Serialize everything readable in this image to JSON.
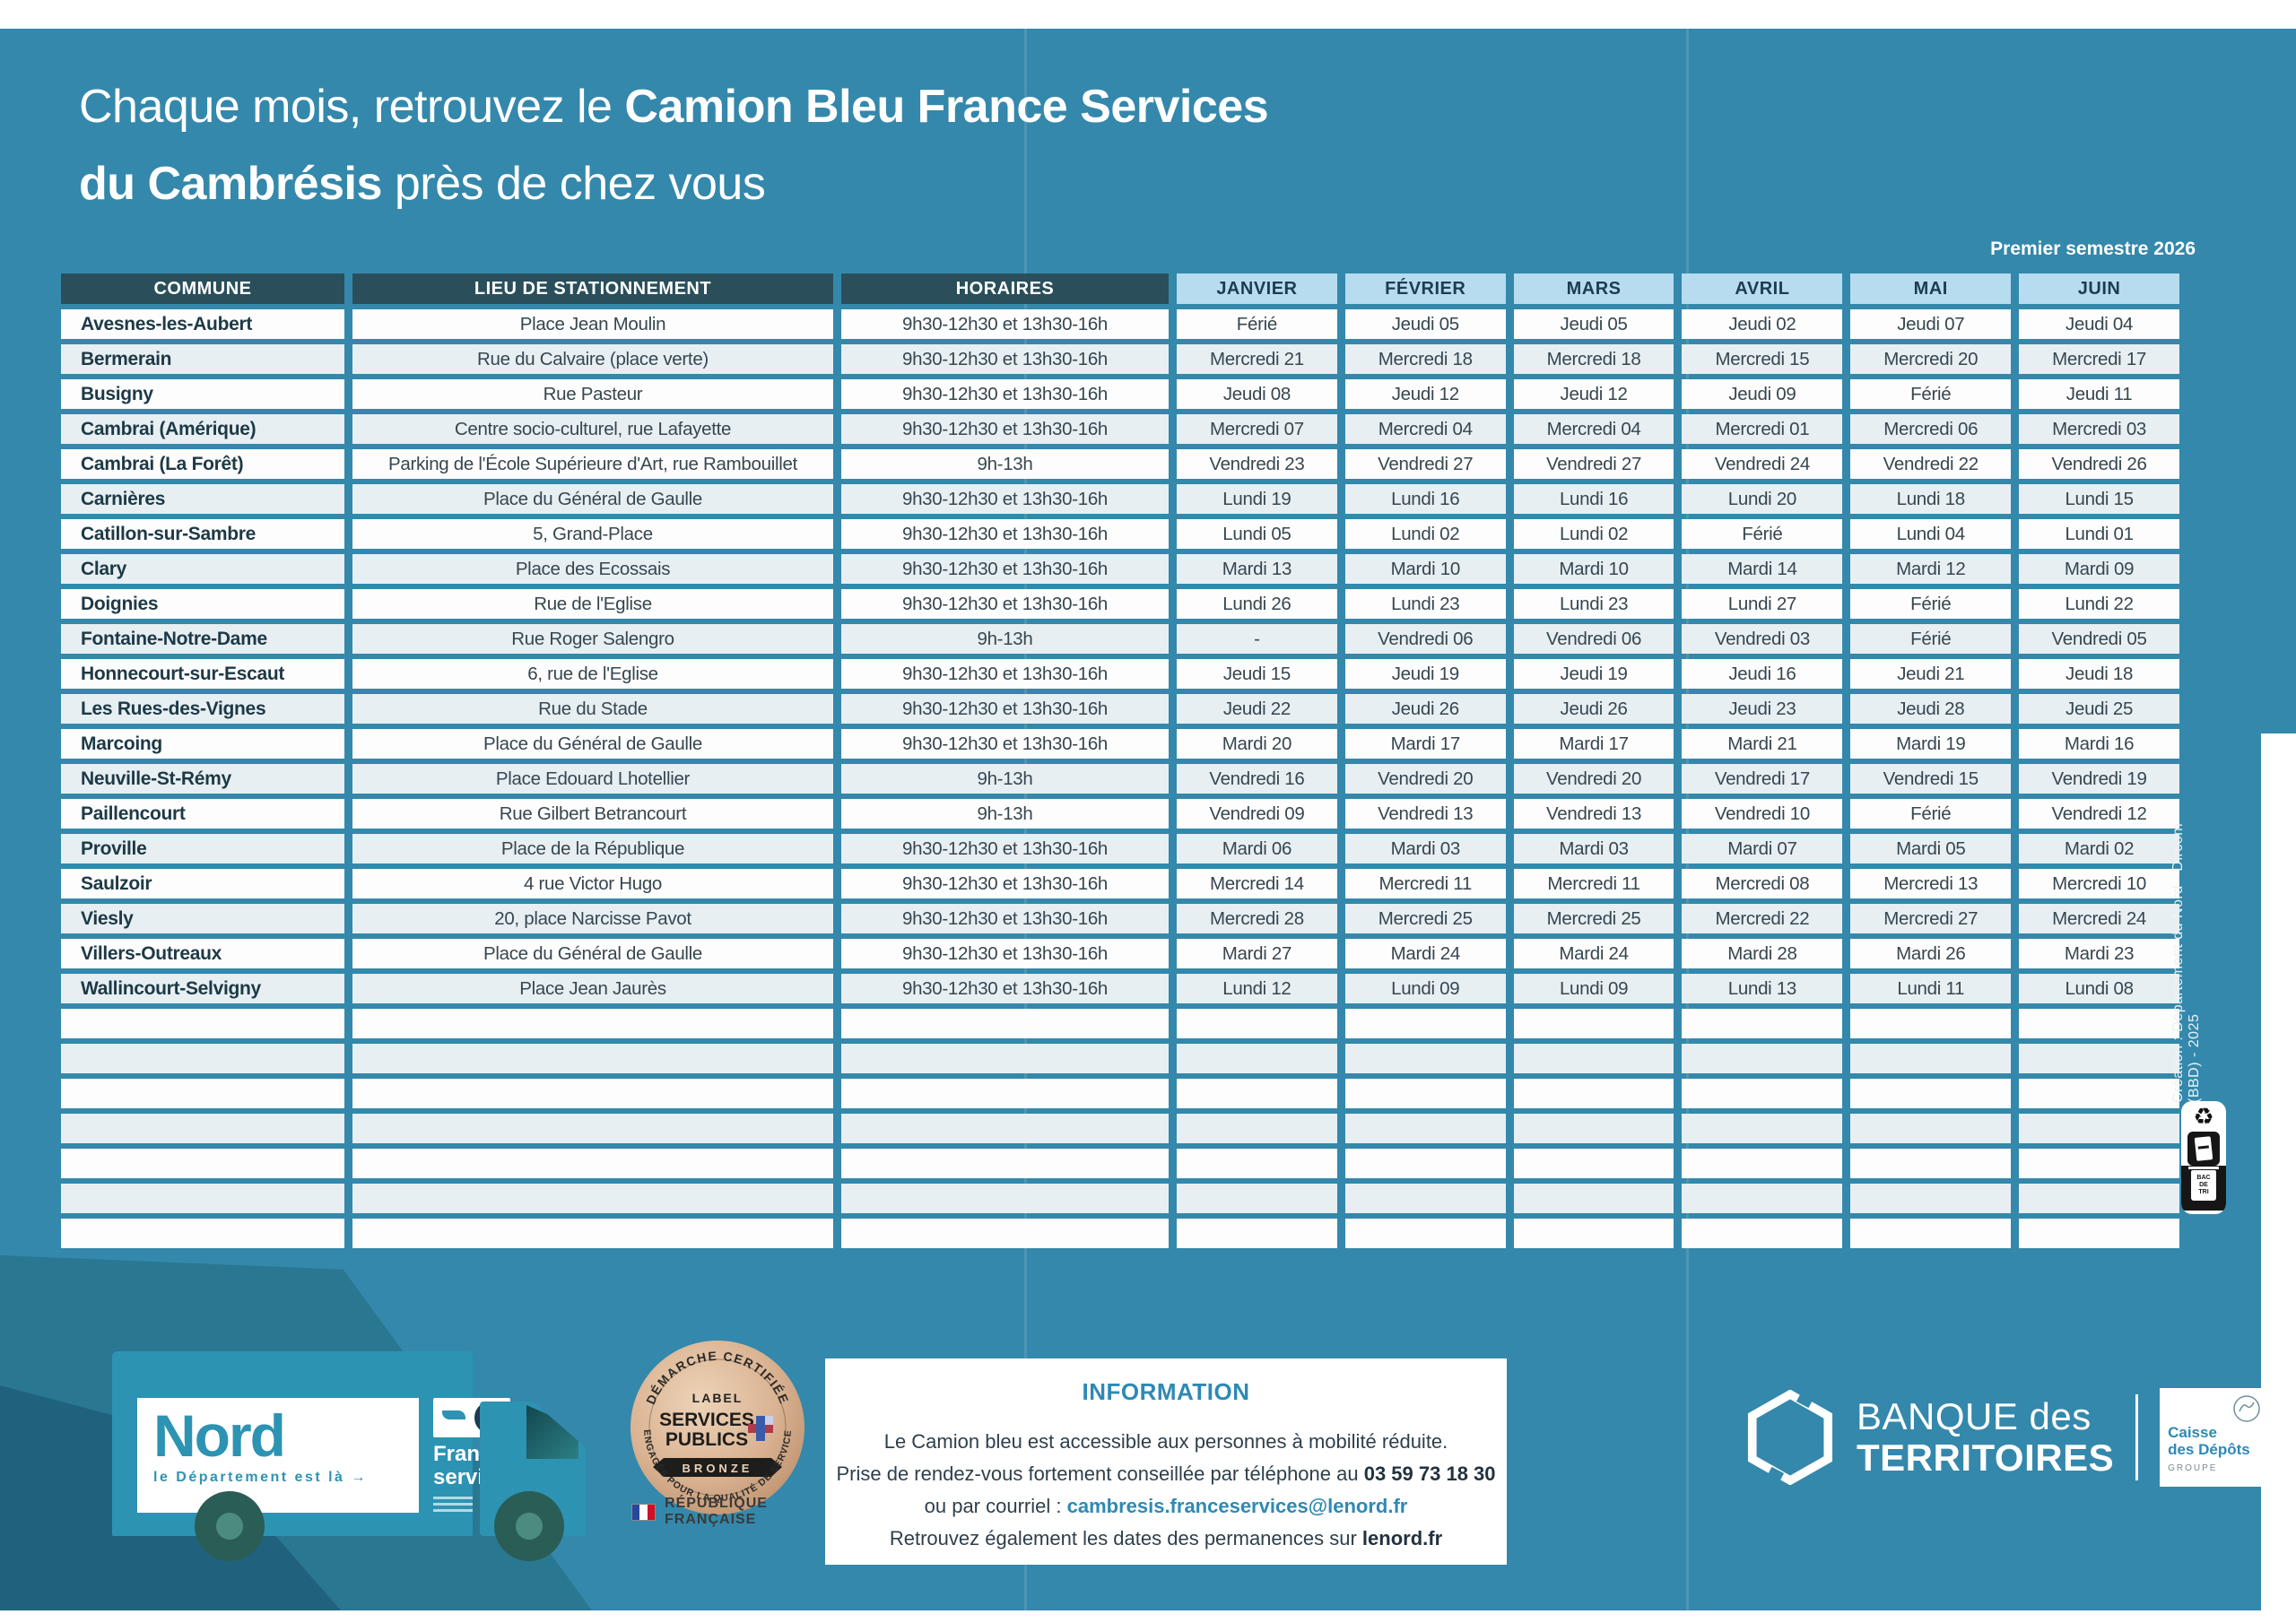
{
  "title": {
    "line1_normal": "Chaque mois, retrouvez le ",
    "line1_bold": "Camion Bleu France Services",
    "line2_bold": "du Cambrésis",
    "line2_normal": " près de chez vous"
  },
  "semester_label": "Premier semestre 2026",
  "table": {
    "headers": [
      "COMMUNE",
      "LIEU DE STATIONNEMENT",
      "HORAIRES",
      "JANVIER",
      "FÉVRIER",
      "MARS",
      "AVRIL",
      "MAI",
      "JUIN"
    ],
    "rows": [
      {
        "commune": "Avesnes-les-Aubert",
        "lieu": "Place Jean Moulin",
        "horaires": "9h30-12h30 et 13h30-16h",
        "dates": [
          "Férié",
          "Jeudi 05",
          "Jeudi 05",
          "Jeudi 02",
          "Jeudi 07",
          "Jeudi 04"
        ]
      },
      {
        "commune": "Bermerain",
        "lieu": "Rue du Calvaire (place verte)",
        "horaires": "9h30-12h30 et 13h30-16h",
        "dates": [
          "Mercredi 21",
          "Mercredi 18",
          "Mercredi 18",
          "Mercredi 15",
          "Mercredi 20",
          "Mercredi 17"
        ]
      },
      {
        "commune": "Busigny",
        "lieu": "Rue Pasteur",
        "horaires": "9h30-12h30 et 13h30-16h",
        "dates": [
          "Jeudi 08",
          "Jeudi 12",
          "Jeudi 12",
          "Jeudi 09",
          "Férié",
          "Jeudi 11"
        ]
      },
      {
        "commune": "Cambrai (Amérique)",
        "lieu": "Centre socio-culturel, rue Lafayette",
        "horaires": "9h30-12h30 et 13h30-16h",
        "dates": [
          "Mercredi 07",
          "Mercredi 04",
          "Mercredi 04",
          "Mercredi 01",
          "Mercredi 06",
          "Mercredi 03"
        ]
      },
      {
        "commune": "Cambrai (La Forêt)",
        "lieu": "Parking de l'École Supérieure d'Art, rue Rambouillet",
        "horaires": "9h-13h",
        "dates": [
          "Vendredi 23",
          "Vendredi 27",
          "Vendredi 27",
          "Vendredi 24",
          "Vendredi 22",
          "Vendredi 26"
        ]
      },
      {
        "commune": "Carnières",
        "lieu": "Place du Général de Gaulle",
        "horaires": "9h30-12h30 et 13h30-16h",
        "dates": [
          "Lundi 19",
          "Lundi 16",
          "Lundi 16",
          "Lundi 20",
          "Lundi 18",
          "Lundi 15"
        ]
      },
      {
        "commune": "Catillon-sur-Sambre",
        "lieu": "5, Grand-Place",
        "horaires": "9h30-12h30 et 13h30-16h",
        "dates": [
          "Lundi 05",
          "Lundi 02",
          "Lundi 02",
          "Férié",
          "Lundi 04",
          "Lundi 01"
        ]
      },
      {
        "commune": "Clary",
        "lieu": "Place des Ecossais",
        "horaires": "9h30-12h30 et 13h30-16h",
        "dates": [
          "Mardi 13",
          "Mardi 10",
          "Mardi 10",
          "Mardi 14",
          "Mardi 12",
          "Mardi 09"
        ]
      },
      {
        "commune": "Doignies",
        "lieu": "Rue de l'Eglise",
        "horaires": "9h30-12h30 et 13h30-16h",
        "dates": [
          "Lundi 26",
          "Lundi 23",
          "Lundi 23",
          "Lundi 27",
          "Férié",
          "Lundi 22"
        ]
      },
      {
        "commune": "Fontaine-Notre-Dame",
        "lieu": "Rue Roger Salengro",
        "horaires": "9h-13h",
        "dates": [
          "-",
          "Vendredi 06",
          "Vendredi 06",
          "Vendredi 03",
          "Férié",
          "Vendredi 05"
        ]
      },
      {
        "commune": "Honnecourt-sur-Escaut",
        "lieu": "6, rue de l'Eglise",
        "horaires": "9h30-12h30 et 13h30-16h",
        "dates": [
          "Jeudi 15",
          "Jeudi 19",
          "Jeudi 19",
          "Jeudi 16",
          "Jeudi 21",
          "Jeudi 18"
        ]
      },
      {
        "commune": "Les Rues-des-Vignes",
        "lieu": "Rue du Stade",
        "horaires": "9h30-12h30 et 13h30-16h",
        "dates": [
          "Jeudi 22",
          "Jeudi 26",
          "Jeudi 26",
          "Jeudi 23",
          "Jeudi 28",
          "Jeudi 25"
        ]
      },
      {
        "commune": "Marcoing",
        "lieu": "Place du Général de Gaulle",
        "horaires": "9h30-12h30 et 13h30-16h",
        "dates": [
          "Mardi 20",
          "Mardi 17",
          "Mardi 17",
          "Mardi 21",
          "Mardi 19",
          "Mardi 16"
        ]
      },
      {
        "commune": "Neuville-St-Rémy",
        "lieu": "Place Edouard Lhotellier",
        "horaires": "9h-13h",
        "dates": [
          "Vendredi 16",
          "Vendredi 20",
          "Vendredi 20",
          "Vendredi 17",
          "Vendredi 15",
          "Vendredi 19"
        ]
      },
      {
        "commune": "Paillencourt",
        "lieu": "Rue Gilbert Betrancourt",
        "horaires": "9h-13h",
        "dates": [
          "Vendredi 09",
          "Vendredi 13",
          "Vendredi 13",
          "Vendredi 10",
          "Férié",
          "Vendredi 12"
        ]
      },
      {
        "commune": "Proville",
        "lieu": "Place de la République",
        "horaires": "9h30-12h30 et 13h30-16h",
        "dates": [
          "Mardi 06",
          "Mardi 03",
          "Mardi 03",
          "Mardi 07",
          "Mardi 05",
          "Mardi 02"
        ]
      },
      {
        "commune": "Saulzoir",
        "lieu": "4 rue Victor Hugo",
        "horaires": "9h30-12h30 et 13h30-16h",
        "dates": [
          "Mercredi 14",
          "Mercredi 11",
          "Mercredi 11",
          "Mercredi 08",
          "Mercredi 13",
          "Mercredi 10"
        ]
      },
      {
        "commune": "Viesly",
        "lieu": "20, place Narcisse Pavot",
        "horaires": "9h30-12h30 et 13h30-16h",
        "dates": [
          "Mercredi 28",
          "Mercredi 25",
          "Mercredi 25",
          "Mercredi 22",
          "Mercredi 27",
          "Mercredi 24"
        ]
      },
      {
        "commune": "Villers-Outreaux",
        "lieu": "Place du Général de Gaulle",
        "horaires": "9h30-12h30 et 13h30-16h",
        "dates": [
          "Mardi 27",
          "Mardi 24",
          "Mardi 24",
          "Mardi 28",
          "Mardi 26",
          "Mardi 23"
        ]
      },
      {
        "commune": "Wallincourt-Selvigny",
        "lieu": "Place Jean Jaurès",
        "horaires": "9h30-12h30 et 13h30-16h",
        "dates": [
          "Lundi 12",
          "Lundi 09",
          "Lundi 09",
          "Lundi 13",
          "Lundi 11",
          "Lundi 08"
        ]
      }
    ],
    "empty_row_count": 7
  },
  "truck": {
    "brand": "Nord",
    "tagline": "le Département est là →",
    "partner_line1": "France",
    "partner_line2": "services"
  },
  "label_badge": {
    "arc_top": "DÉMARCHE CERTIFIÉE",
    "center_line1": "LABEL",
    "center_line2": "SERVICES",
    "center_line3": "PUBLICS",
    "ribbon": "BRONZE",
    "arc_bottom": "ENGAGÉS POUR LA QUALITÉ DE SERVICE",
    "republique": "RÉPUBLIQUE FRANÇAISE"
  },
  "info_box": {
    "title": "INFORMATION",
    "line1": "Le Camion bleu est accessible aux personnes à mobilité réduite.",
    "line2_prefix": "Prise de rendez-vous fortement conseillée par téléphone au ",
    "phone": "03 59 73 18 30",
    "line3_prefix": "ou par courriel : ",
    "email": "cambresis.franceservices@lenord.fr",
    "line4_prefix": "Retrouvez également les dates des permanences sur ",
    "site": "lenord.fr"
  },
  "bank_logo": {
    "line1": "BANQUE des",
    "line2": "TERRITOIRES",
    "box_line1": "Caisse",
    "box_line2": "des Dépôts",
    "box_line3": "GROUPE"
  },
  "credit_vertical": "Création : Département du Nord - Dircom (BBD) - 2025",
  "eco_badge": {
    "bin_label_1": "BAC",
    "bin_label_2": "DE",
    "bin_label_3": "TRI"
  },
  "colors": {
    "page_blue": "#3488ab",
    "swoosh_dark": "#2a7792",
    "header_dark": "#2a4f5a",
    "month_header_bg": "#b7dcef",
    "month_header_text": "#1d3c52",
    "row_tint": "#e7eff3",
    "accent_blue": "#2e89b5",
    "truck_blue": "#2d93b3",
    "bronze": "#d9b291"
  }
}
